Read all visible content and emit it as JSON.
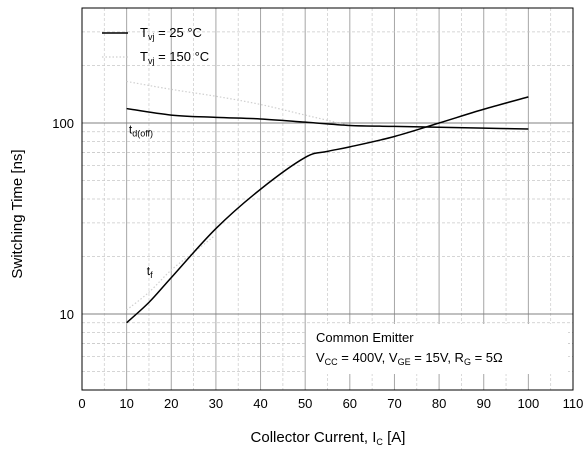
{
  "chart_data": {
    "type": "line",
    "xlabel": {
      "main": "Collector Current, I",
      "sub": "C",
      "tail": " [A]"
    },
    "ylabel": "Switching Time [ns]",
    "x_scale": "linear",
    "y_scale": "log",
    "xlim": [
      0,
      110
    ],
    "ylim": [
      4,
      400
    ],
    "x_ticks": [
      0,
      10,
      20,
      30,
      40,
      50,
      60,
      70,
      80,
      90,
      100,
      110
    ],
    "y_tick_labels": [
      {
        "value": 10,
        "label": "10"
      },
      {
        "value": 100,
        "label": "100"
      }
    ],
    "grid": true,
    "legend_position": "top-left",
    "series": [
      {
        "name": "T_vj = 25 °C",
        "style": "solid",
        "color": "#000000",
        "curves": [
          {
            "label": "t_d(off)",
            "x": [
              10,
              20,
              30,
              40,
              50,
              60,
              70,
              80,
              90,
              100
            ],
            "y": [
              119,
              110,
              107,
              105,
              101,
              97,
              96,
              95,
              94,
              93
            ]
          },
          {
            "label": "t_f",
            "x": [
              10,
              15,
              20,
              30,
              40,
              50,
              55,
              60,
              70,
              80,
              90,
              100
            ],
            "y": [
              9,
              11.5,
              15.5,
              28,
              45,
              66,
              71,
              75,
              85,
              100,
              118,
              137
            ]
          }
        ]
      },
      {
        "name": "T_vj = 150 °C",
        "style": "dotted",
        "color": "#cfcfcf",
        "curves": [
          {
            "label": "t_d(off)",
            "x": [
              10,
              20,
              30,
              40,
              50,
              60
            ],
            "y": [
              165,
              150,
              138,
              125,
              110,
              97
            ]
          },
          {
            "label": "t_f",
            "x": [
              10,
              15,
              20,
              25,
              30
            ],
            "y": [
              10.5,
              13,
              17,
              21,
              26
            ]
          }
        ]
      }
    ],
    "legend": [
      {
        "main": "T",
        "sub": "vj",
        "tail": " = 25 °C",
        "style": "solid"
      },
      {
        "main": "T",
        "sub": "vj",
        "tail": " = 150 °C",
        "style": "dotted"
      }
    ],
    "annotations": [
      {
        "main": "t",
        "sub": "d(off)",
        "x": 10.5,
        "y": 88
      },
      {
        "main": "t",
        "sub": "f",
        "x": 14.5,
        "y": 16
      }
    ],
    "note": {
      "line1": "Common Emitter",
      "line2": [
        {
          "t": "V"
        },
        {
          "t": "CC",
          "sub": true
        },
        {
          "t": " = 400V, V"
        },
        {
          "t": "GE",
          "sub": true
        },
        {
          "t": " = 15V, R"
        },
        {
          "t": "G",
          "sub": true
        },
        {
          "t": " = 5Ω"
        }
      ]
    }
  }
}
